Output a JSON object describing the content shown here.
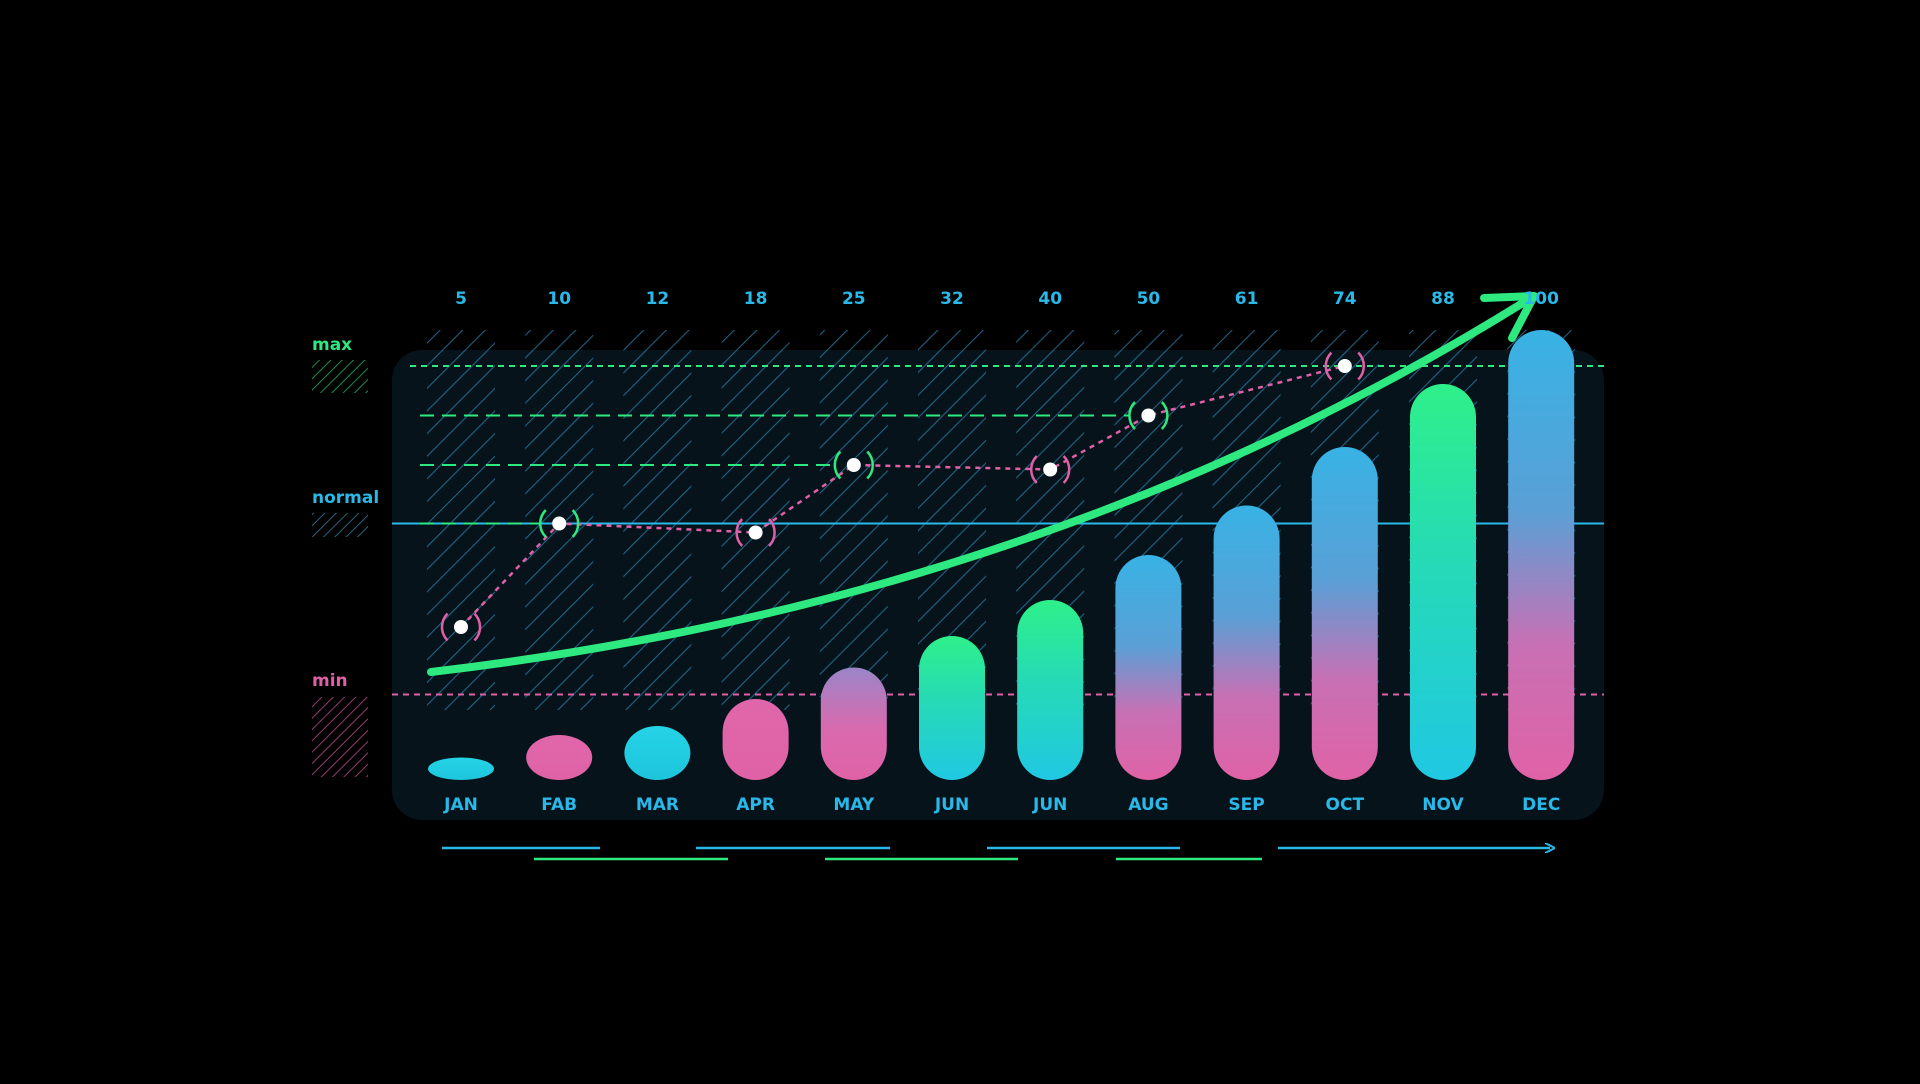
{
  "chart_data": {
    "type": "bar",
    "categories": [
      "JAN",
      "FAB",
      "MAR",
      "APR",
      "MAY",
      "JUN",
      "JUN",
      "AUG",
      "SEP",
      "OCT",
      "NOV",
      "DEC"
    ],
    "top_labels": [
      "5",
      "10",
      "12",
      "18",
      "25",
      "32",
      "40",
      "50",
      "61",
      "74",
      "88",
      "100"
    ],
    "values": [
      5,
      10,
      12,
      18,
      25,
      32,
      40,
      50,
      61,
      74,
      88,
      100
    ],
    "ylim": [
      0,
      100
    ],
    "bar_styles": [
      "cyan",
      "pink",
      "cyan",
      "pink",
      "mixed-pink",
      "green-cyan",
      "green-cyan",
      "blue-pink",
      "blue-pink",
      "blue-pink",
      "green-cyan",
      "blue-pink"
    ],
    "line_series": {
      "indices": [
        0,
        1,
        3,
        4,
        6,
        7,
        9
      ],
      "levels": [
        0.34,
        0.57,
        0.55,
        0.7,
        0.69,
        0.81,
        0.92
      ],
      "marker_colors": [
        "pink",
        "green",
        "pink",
        "green",
        "pink",
        "green",
        "pink"
      ],
      "color": "#e060a8"
    },
    "reference_lines": [
      {
        "label": "max",
        "level": 0.92,
        "color": "#2ee880"
      },
      {
        "label": "normal",
        "level": 0.57,
        "color": "#2ab8e8"
      },
      {
        "label": "min",
        "level": 0.19,
        "color": "#e060a8"
      }
    ],
    "trend": {
      "color": "#2ee880",
      "direction": "up"
    },
    "grid": false,
    "legend_position": "left"
  },
  "legend": {
    "max_label": "max",
    "normal_label": "normal",
    "min_label": "min"
  },
  "colors": {
    "background": "#000000",
    "cyan": "#22cce0",
    "blue": "#3aa8e0",
    "green": "#2ee880",
    "pink": "#e060a8",
    "label": "#2ab8e8"
  }
}
